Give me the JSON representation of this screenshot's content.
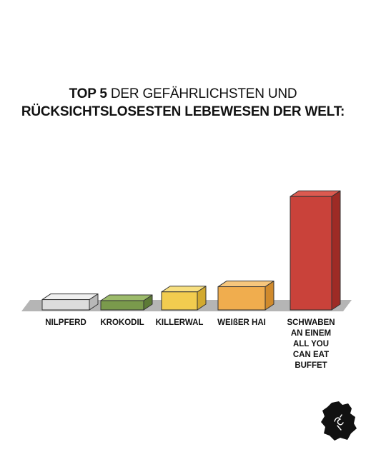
{
  "title": {
    "line1_bold": "TOP 5",
    "line1_rest": " DER GEFÄHRLICHSTEN UND",
    "line2": "RÜCKSICHTSLOSESTEN LEBEWESEN DER WELT:"
  },
  "chart_data": {
    "type": "bar",
    "title": "TOP 5 DER GEFÄHRLICHSTEN UND RÜCKSICHTSLOSESTEN LEBEWESEN DER WELT:",
    "xlabel": "",
    "ylabel": "",
    "categories": [
      [
        "NILPFERD"
      ],
      [
        "KROKODIL"
      ],
      [
        "KILLERWAL"
      ],
      [
        "WEIßER HAI"
      ],
      [
        "SCHWABEN",
        "AN EINEM",
        "ALL YOU",
        "CAN EAT",
        "BUFFET"
      ]
    ],
    "values": [
      2,
      1.8,
      3.5,
      4.5,
      22
    ],
    "ylim": [
      0,
      23
    ],
    "grid": false,
    "colors": [
      {
        "face": "#dcdcdc",
        "top": "#f0f0f0",
        "side": "#b8b8b8"
      },
      {
        "face": "#7a9a4c",
        "top": "#9cbb6b",
        "side": "#5d7a36"
      },
      {
        "face": "#f2cc4f",
        "top": "#f7df80",
        "side": "#d2a92f"
      },
      {
        "face": "#f0ad4e",
        "top": "#f6c67d",
        "side": "#d08a2c"
      },
      {
        "face": "#c9423a",
        "top": "#dc5a50",
        "side": "#9e2b25"
      }
    ]
  },
  "logo": {
    "icon": "swabia-map-icon"
  }
}
